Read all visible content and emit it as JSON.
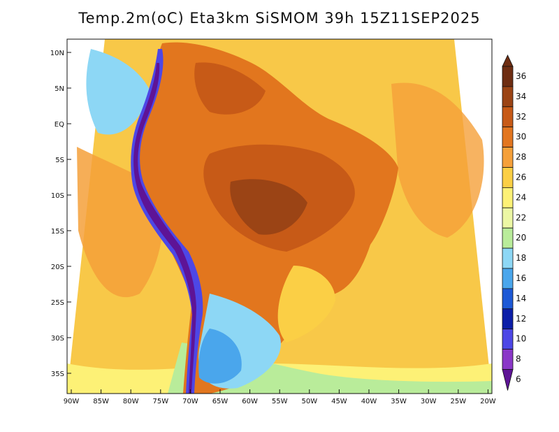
{
  "title": "Temp.2m(oC) Eta3km SiSMOM 39h 15Z11SEP2025",
  "map": {
    "lat_labels": [
      "10N",
      "5N",
      "EQ",
      "5S",
      "10S",
      "15S",
      "20S",
      "25S",
      "30S",
      "35S"
    ],
    "lon_labels": [
      "90W",
      "85W",
      "80W",
      "75W",
      "70W",
      "65W",
      "60W",
      "55W",
      "50W",
      "45W",
      "40W",
      "35W",
      "30W",
      "25W",
      "20W"
    ],
    "ocean_color": "#f8c848",
    "land_color": "#e2761e"
  },
  "colorbar": {
    "labels": [
      "36",
      "34",
      "32",
      "30",
      "28",
      "26",
      "24",
      "22",
      "20",
      "18",
      "16",
      "14",
      "12",
      "10",
      "8",
      "6"
    ],
    "colors": [
      "#6e2d12",
      "#9b4415",
      "#c75a17",
      "#e27620",
      "#f5a03a",
      "#fbcf45",
      "#fdf176",
      "#ecf7a4",
      "#b9ec9a",
      "#8dd7f5",
      "#4aa6ec",
      "#1d59d6",
      "#0c1ea8",
      "#4d47e6",
      "#8a37c8",
      "#5e1496"
    ]
  }
}
